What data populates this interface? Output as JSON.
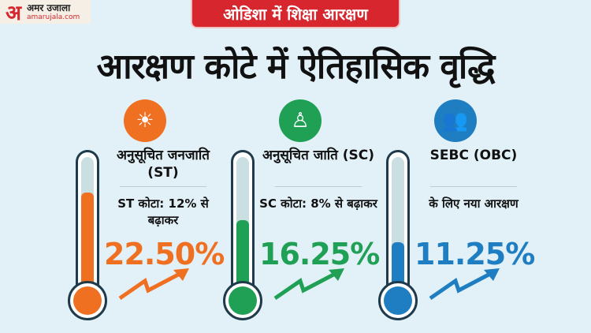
{
  "logo": {
    "mark": "अ",
    "name": "अमर उजाला",
    "site": "amarujala.com"
  },
  "tag": "ओडिशा में शिक्षा आरक्षण",
  "title": "आरक्षण कोटे में ऐतिहासिक वृद्धि",
  "columns": [
    {
      "icon": "tribal-face-icon",
      "name": "अनुसूचित जनजाति (ST)",
      "sub": "ST कोटा: 12% से बढ़ाकर",
      "value": "22.50%",
      "level": 22.5,
      "color": "#f07022"
    },
    {
      "icon": "hands-person-icon",
      "name": "अनुसूचित जाति (SC)",
      "sub": "SC कोटा: 8% से बढ़ाकर",
      "value": "16.25%",
      "level": 16.25,
      "color": "#1fa055"
    },
    {
      "icon": "people-group-icon",
      "name": "SEBC (OBC)",
      "sub": "के लिए नया आरक्षण",
      "value": "11.25%",
      "level": 11.25,
      "color": "#1f7ec2"
    }
  ]
}
